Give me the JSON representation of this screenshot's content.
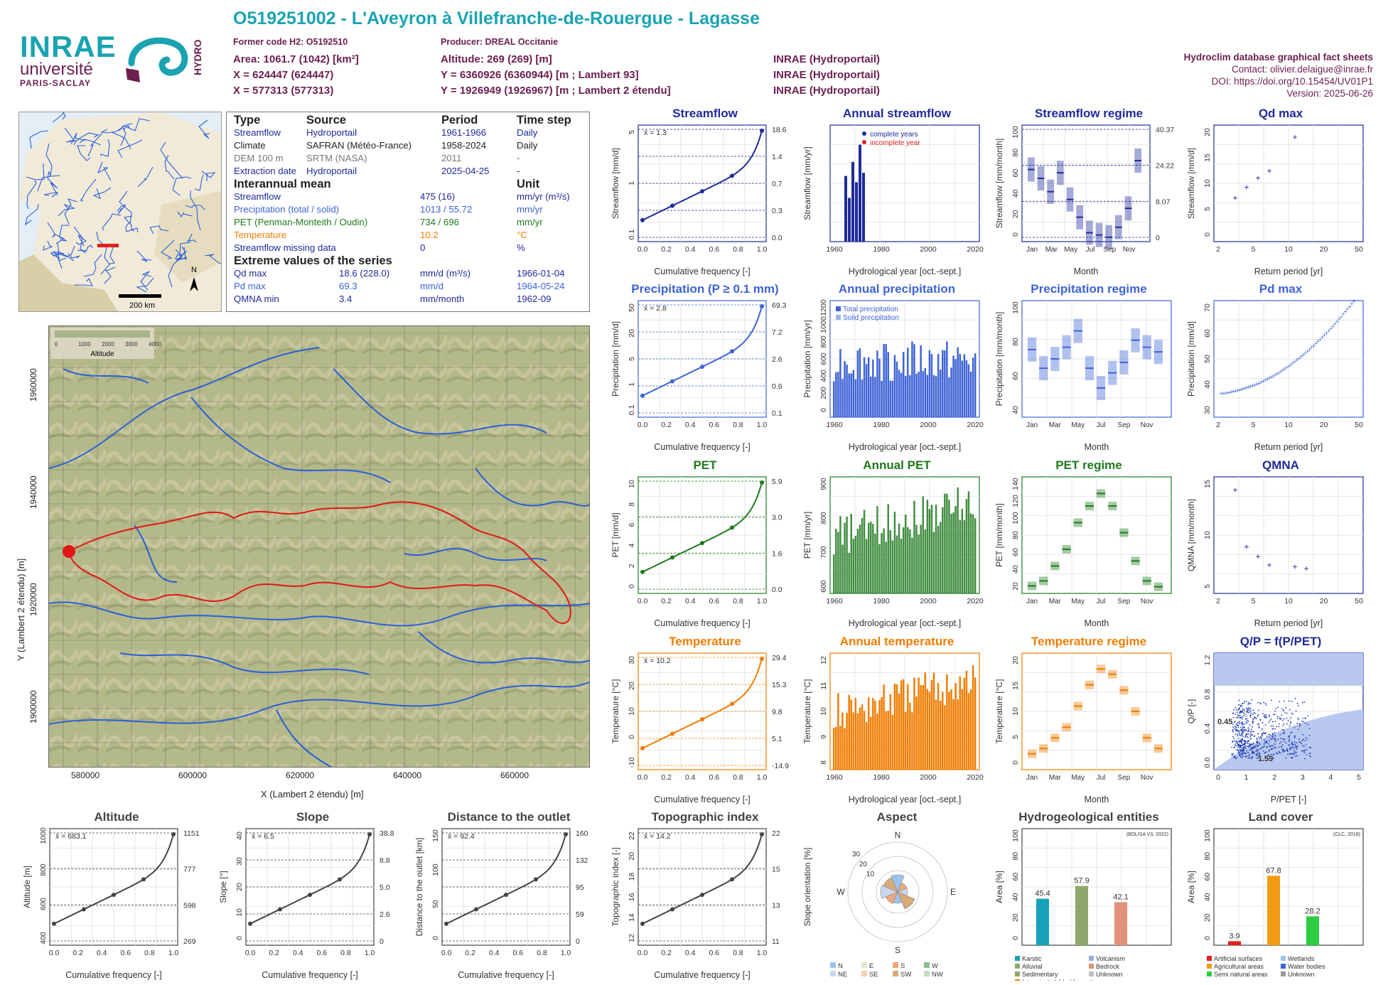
{
  "header": {
    "title": "O519251002 - L'Aveyron à Villefranche-de-Rouergue - Lagasse",
    "former_code": "Former code H2: O5192510",
    "producer": "Producer: DREAL Occitanie",
    "area": "Area: 1061.7 (1042) [km²]",
    "x": "X = 624447 (624447)",
    "x2": "X = 577313 (577313)",
    "altitude": "Altitude: 269 (269) [m]",
    "y": "Y = 6360926 (6360944) [m ; Lambert 93]",
    "y2": "Y = 1926949 (1926967) [m ; Lambert 2 étendu]",
    "src1": "INRAE (Hydroportail)",
    "src2": "INRAE (Hydroportail)",
    "src3": "INRAE (Hydroportail)",
    "db": "Hydroclim database graphical fact sheets",
    "contact": "Contact: olivier.delaigue@inrae.fr",
    "doi": "DOI: https://doi.org/10.15454/UV01P1",
    "version": "Version: 2025-06-26"
  },
  "logos": {
    "inrae": "INRAE",
    "univ": "université",
    "paris": "PARIS-SACLAY",
    "hydro": "HYDRO"
  },
  "colors": {
    "streamflow": "#1f2a9a",
    "precip": "#3d63d6",
    "pet": "#1e7a1e",
    "temp": "#f07c00",
    "grey": "#555555",
    "purple": "#6b1f4e"
  },
  "table": {
    "h_type": "Type",
    "h_source": "Source",
    "h_period": "Period",
    "h_step": "Time step",
    "rows": [
      {
        "type": "Streamflow",
        "source": "Hydroportail",
        "period": "1961-1966",
        "step": "Daily",
        "color": "#1f2a9a"
      },
      {
        "type": "Climate",
        "source": "SAFRAN (Météo-France)",
        "period": "1958-2024",
        "step": "Daily",
        "color": "#222222"
      },
      {
        "type": "DEM 100 m",
        "source": "SRTM (NASA)",
        "period": "2011",
        "step": "-",
        "color": "#777777"
      },
      {
        "type": "Extraction date",
        "source": "Hydroportail",
        "period": "2025-04-25",
        "step": "-",
        "color": "#1f2a9a"
      }
    ],
    "h_mean": "Interannual mean",
    "h_unit": "Unit",
    "means": [
      {
        "name": "Streamflow",
        "value": "475 (16)",
        "unit": "mm/yr (m³/s)",
        "color": "#1f2a9a"
      },
      {
        "name": "Precipitation (total / solid)",
        "value": "1013 / 55.72",
        "unit": "mm/yr",
        "color": "#3d63d6"
      },
      {
        "name": "PET (Penman-Monteith / Oudin)",
        "value": "734 / 696",
        "unit": "mm/yr",
        "color": "#1e7a1e"
      },
      {
        "name": "Temperature",
        "value": "10.2",
        "unit": "°C",
        "color": "#f07c00"
      },
      {
        "name": "Streamflow missing data",
        "value": "0",
        "unit": "%",
        "color": "#1f2a9a"
      }
    ],
    "h_extreme": "Extreme values of the series",
    "extremes": [
      {
        "name": "Qd max",
        "value": "18.6 (228.0)",
        "unit": "mm/d (m³/s)",
        "date": "1966-01-04",
        "color": "#1f2a9a"
      },
      {
        "name": "Pd max",
        "value": "69.3",
        "unit": "mm/d",
        "date": "1964-05-24",
        "color": "#3d63d6"
      },
      {
        "name": "QMNA min",
        "value": "3.4",
        "unit": "mm/month",
        "date": "1962-09",
        "color": "#1f2a9a"
      }
    ]
  },
  "minimap": {
    "scale": "200 km",
    "north": "N"
  },
  "bigmap": {
    "legend_title": "Altitude",
    "legend_ticks": [
      "0",
      "1000",
      "2000",
      "3000",
      "4000"
    ],
    "xlabel": "X (Lambert 2 étendu) [m]",
    "ylabel": "Y (Lambert 2 étendu) [m]",
    "xticks": [
      "580000",
      "600000",
      "620000",
      "640000",
      "660000"
    ],
    "yticks": [
      "1900000",
      "1920000",
      "1940000",
      "1960000"
    ]
  },
  "chart_data": [
    {
      "id": "streamflow",
      "type": "line",
      "title": "Streamflow",
      "xlabel": "Cumulative frequency [-]",
      "ylabel": "Streamflow [mm/d]",
      "mean_label": "x̄ = 1.3",
      "xticks": [
        "0.0",
        "0.2",
        "0.4",
        "0.6",
        "0.8",
        "1.0"
      ],
      "yticks": [
        "0.1",
        "1",
        "5"
      ],
      "right_ticks": [
        "18.6",
        "1.4",
        "0.7",
        "0.3",
        "0.0"
      ]
    },
    {
      "id": "annual_streamflow",
      "type": "bar",
      "title": "Annual streamflow",
      "xlabel": "Hydrological year [oct.-sept.]",
      "ylabel": "Streamflow [mm/yr]",
      "legend": [
        "complete years",
        "incomplete year"
      ],
      "xticks": [
        "1960",
        "1980",
        "2000",
        "2020"
      ],
      "years": [
        1961,
        1962,
        1963,
        1964,
        1965,
        1966
      ],
      "values": [
        420,
        280,
        510,
        380,
        620,
        440
      ]
    },
    {
      "id": "streamflow_regime",
      "type": "bar",
      "title": "Streamflow regime",
      "xlabel": "Month",
      "ylabel": "Streamflow [mm/month]",
      "yticks": [
        "0",
        "20",
        "40",
        "60",
        "80",
        "100"
      ],
      "right_ticks": [
        "40.37",
        "24.22",
        "8.07",
        "0"
      ],
      "months": [
        "Jan",
        "Mar",
        "May",
        "Jul",
        "Sep",
        "Nov"
      ],
      "mean": [
        65,
        57,
        45,
        62,
        38,
        22,
        8,
        6,
        4,
        13,
        30,
        73
      ]
    },
    {
      "id": "qd_max",
      "type": "scatter",
      "title": "Qd max",
      "xlabel": "Return period [yr]",
      "ylabel": "Streamflow [mm/d]",
      "xticks": [
        "2",
        "5",
        "10",
        "20",
        "50"
      ],
      "yticks": [
        "0",
        "5",
        "10",
        "15",
        "20"
      ],
      "values": [
        7.5,
        9.4,
        11.1,
        12.4,
        18.6
      ]
    },
    {
      "id": "precipitation",
      "type": "line",
      "title": "Precipitation (P ≥ 0.1 mm)",
      "xlabel": "Cumulative frequency [-]",
      "ylabel": "Precipitation [mm/d]",
      "mean_label": "x̄ = 2.8",
      "xticks": [
        "0.0",
        "0.2",
        "0.4",
        "0.6",
        "0.8",
        "1.0"
      ],
      "yticks": [
        "0.1",
        "1",
        "5",
        "20",
        "50"
      ],
      "right_ticks": [
        "69.3",
        "7.2",
        "2.6",
        "0.6",
        "0.1"
      ]
    },
    {
      "id": "annual_precipitation",
      "type": "bar",
      "title": "Annual precipitation",
      "xlabel": "Hydrological year [oct.-sept.]",
      "ylabel": "Precipitation [mm/yr]",
      "legend": [
        "Total precipitation",
        "Solid precipitation"
      ],
      "xticks": [
        "1960",
        "1980",
        "2000",
        "2020"
      ],
      "yticks": [
        "0",
        "200",
        "400",
        "600",
        "800",
        "1000",
        "1200"
      ]
    },
    {
      "id": "precipitation_regime",
      "type": "bar",
      "title": "Precipitation regime",
      "xlabel": "Month",
      "ylabel": "Precipitation [mm/month]",
      "yticks": [
        "40",
        "60",
        "80",
        "100"
      ],
      "months": [
        "Jan",
        "Mar",
        "May",
        "Jul",
        "Sep",
        "Nov"
      ],
      "mean": [
        88,
        72,
        80,
        90,
        104,
        72,
        55,
        68,
        77,
        96,
        90,
        86
      ]
    },
    {
      "id": "pd_max",
      "type": "scatter",
      "title": "Pd max",
      "xlabel": "Return period [yr]",
      "ylabel": "Precipitation [mm/d]",
      "xticks": [
        "2",
        "5",
        "10",
        "20",
        "50"
      ],
      "yticks": [
        "30",
        "40",
        "50",
        "60",
        "70"
      ]
    },
    {
      "id": "pet",
      "type": "line",
      "title": "PET",
      "xlabel": "Cumulative frequency [-]",
      "ylabel": "PET [mm/d]",
      "legend": [
        "x̄Oudin = 1.9",
        "x̄Penman-Monteith = 2"
      ],
      "xticks": [
        "0.0",
        "0.2",
        "0.4",
        "0.6",
        "0.8",
        "1.0"
      ],
      "yticks": [
        "0",
        "2",
        "4",
        "6",
        "8",
        "10"
      ],
      "right_ticks": [
        "5.9",
        "3.0",
        "1.6",
        "0.0"
      ]
    },
    {
      "id": "annual_pet",
      "type": "bar",
      "title": "Annual PET",
      "xlabel": "Hydrological year [oct.-sept.]",
      "ylabel": "PET [mm/yr]",
      "xticks": [
        "1960",
        "1980",
        "2000",
        "2020"
      ],
      "yticks": [
        "600",
        "700",
        "800",
        "900"
      ]
    },
    {
      "id": "pet_regime",
      "type": "bar",
      "title": "PET regime",
      "xlabel": "Month",
      "ylabel": "PET [mm/month]",
      "yticks": [
        "20",
        "40",
        "60",
        "80",
        "100",
        "120",
        "140"
      ],
      "months": [
        "Jan",
        "Mar",
        "May",
        "Jul",
        "Sep",
        "Nov"
      ],
      "mean": [
        14,
        20,
        38,
        58,
        90,
        110,
        125,
        110,
        78,
        44,
        20,
        13
      ]
    },
    {
      "id": "qmna",
      "type": "scatter",
      "title": "QMNA",
      "xlabel": "Return period [yr]",
      "ylabel": "QMNA [mm/month]",
      "xticks": [
        "2",
        "5",
        "10",
        "20",
        "50"
      ],
      "yticks": [
        "5",
        "10",
        "15"
      ],
      "values": [
        15.6,
        6.8,
        5.3,
        4.0,
        3.7,
        3.4
      ]
    },
    {
      "id": "temperature",
      "type": "line",
      "title": "Temperature",
      "xlabel": "Cumulative frequency [-]",
      "ylabel": "Temperature [°C]",
      "mean_label": "x̄ = 10.2",
      "xticks": [
        "0.0",
        "0.2",
        "0.4",
        "0.6",
        "0.8",
        "1.0"
      ],
      "yticks": [
        "-10",
        "0",
        "10",
        "20",
        "30"
      ],
      "right_ticks": [
        "29.4",
        "15.3",
        "9.8",
        "5.1",
        "-14.9"
      ]
    },
    {
      "id": "annual_temperature",
      "type": "bar",
      "title": "Annual temperature",
      "xlabel": "Hydrological year [oct.-sept.]",
      "ylabel": "Temperature [°C]",
      "xticks": [
        "1960",
        "1980",
        "2000",
        "2020"
      ],
      "yticks": [
        "8",
        "9",
        "10",
        "11",
        "12"
      ]
    },
    {
      "id": "temperature_regime",
      "type": "bar",
      "title": "Temperature regime",
      "xlabel": "Month",
      "ylabel": "Temperature [°C]",
      "yticks": [
        "0",
        "5",
        "10",
        "15",
        "20"
      ],
      "months": [
        "Jan",
        "Mar",
        "May",
        "Jul",
        "Sep",
        "Nov"
      ],
      "mean": [
        3,
        4,
        6,
        8,
        12,
        16,
        19,
        18,
        15,
        11,
        6,
        4
      ]
    },
    {
      "id": "qp",
      "type": "scatter",
      "title": "Q/P = f(P/PET)",
      "xlabel": "P/PET [-]",
      "ylabel": "Q/P [-]",
      "xticks": [
        "0",
        "1",
        "2",
        "3",
        "4",
        "5"
      ],
      "yticks": [
        "0.0",
        "0.4",
        "0.8",
        "1.2"
      ],
      "labels": [
        "0.45",
        "1.59"
      ]
    },
    {
      "id": "altitude",
      "type": "line",
      "title": "Altitude",
      "xlabel": "Cumulative frequency [-]",
      "ylabel": "Altitude [m]",
      "mean_label": "x̄ = 683.1",
      "xticks": [
        "0.0",
        "0.2",
        "0.4",
        "0.6",
        "0.8",
        "1.0"
      ],
      "yticks": [
        "400",
        "600",
        "800",
        "1000"
      ],
      "right_ticks": [
        "1151",
        "777",
        "598",
        "269"
      ]
    },
    {
      "id": "slope",
      "type": "line",
      "title": "Slope",
      "xlabel": "Cumulative frequency [-]",
      "ylabel": "Slope [°]",
      "mean_label": "x̄ = 6.5",
      "xticks": [
        "0.0",
        "0.2",
        "0.4",
        "0.6",
        "0.8",
        "1.0"
      ],
      "yticks": [
        "0",
        "10",
        "20",
        "30",
        "40"
      ],
      "right_ticks": [
        "38.8",
        "8.8",
        "5.0",
        "2.6",
        "0"
      ]
    },
    {
      "id": "distance",
      "type": "line",
      "title": "Distance to the outlet",
      "xlabel": "Cumulative frequency [-]",
      "ylabel": "Distance to the outlet [km]",
      "mean_label": "x̄ = 92.4",
      "xticks": [
        "0.0",
        "0.2",
        "0.4",
        "0.6",
        "0.8",
        "1.0"
      ],
      "yticks": [
        "0",
        "50",
        "100",
        "150"
      ],
      "right_ticks": [
        "160",
        "132",
        "95",
        "59",
        "0"
      ]
    },
    {
      "id": "topo",
      "type": "line",
      "title": "Topographic index",
      "xlabel": "Cumulative frequency [-]",
      "ylabel": "Topographic index [-]",
      "mean_label": "x̄ = 14.2",
      "xticks": [
        "0.0",
        "0.2",
        "0.4",
        "0.6",
        "0.8",
        "1.0"
      ],
      "yticks": [
        "12",
        "14",
        "16",
        "18",
        "20",
        "22"
      ],
      "right_ticks": [
        "22",
        "15",
        "13",
        "11"
      ]
    },
    {
      "id": "aspect",
      "type": "pie",
      "title": "Aspect",
      "ylabel": "Slope orientation [%]",
      "directions": [
        "N",
        "E",
        "S",
        "W"
      ],
      "rings": [
        "10",
        "20",
        "30"
      ],
      "legend": [
        "N",
        "E",
        "S",
        "W",
        "NE",
        "SE",
        "SW",
        "NW"
      ]
    },
    {
      "id": "hydrogeology",
      "type": "bar",
      "title": "Hydrogeological entities",
      "ylabel": "Area [%]",
      "note": "(BDLISA V3, 2022)",
      "yticks": [
        "0",
        "20",
        "40",
        "60",
        "80",
        "100"
      ],
      "values": [
        45.4,
        57.9,
        42.1
      ],
      "value_labels": [
        "45.4",
        "57.9",
        "42.1"
      ],
      "legend": [
        "Karstic",
        "Volcanism",
        "Alluvial",
        "Bedrock",
        "Sedimentary",
        "Unknown",
        "Intensively folded formation"
      ]
    },
    {
      "id": "landcover",
      "type": "bar",
      "title": "Land cover",
      "ylabel": "Area [%]",
      "note": "(CLC, 2018)",
      "yticks": [
        "0",
        "20",
        "40",
        "60",
        "80",
        "100"
      ],
      "values": [
        3.9,
        67.8,
        28.2
      ],
      "value_labels": [
        "3.9",
        "67.8",
        "28.2"
      ],
      "legend": [
        "Artificial surfaces",
        "Wetlands",
        "Agricultural areas",
        "Water bodies",
        "Semi natural areas",
        "Unknown"
      ]
    }
  ]
}
